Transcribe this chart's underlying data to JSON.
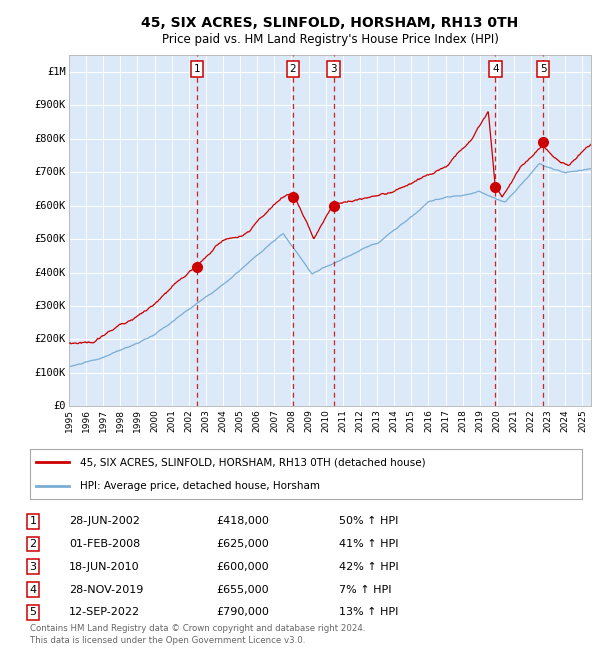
{
  "title": "45, SIX ACRES, SLINFOLD, HORSHAM, RH13 0TH",
  "subtitle": "Price paid vs. HM Land Registry's House Price Index (HPI)",
  "legend_red": "45, SIX ACRES, SLINFOLD, HORSHAM, RH13 0TH (detached house)",
  "legend_blue": "HPI: Average price, detached house, Horsham",
  "footer1": "Contains HM Land Registry data © Crown copyright and database right 2024.",
  "footer2": "This data is licensed under the Open Government Licence v3.0.",
  "sales": [
    {
      "num": 1,
      "date": "28-JUN-2002",
      "price": 418000,
      "pct": "50%",
      "dir": "↑",
      "x_year": 2002.49
    },
    {
      "num": 2,
      "date": "01-FEB-2008",
      "price": 625000,
      "pct": "41%",
      "dir": "↑",
      "x_year": 2008.08
    },
    {
      "num": 3,
      "date": "18-JUN-2010",
      "price": 600000,
      "pct": "42%",
      "dir": "↑",
      "x_year": 2010.46
    },
    {
      "num": 4,
      "date": "28-NOV-2019",
      "price": 655000,
      "pct": "7%",
      "dir": "↑",
      "x_year": 2019.91
    },
    {
      "num": 5,
      "date": "12-SEP-2022",
      "price": 790000,
      "pct": "13%",
      "dir": "↑",
      "x_year": 2022.7
    }
  ],
  "plot_bg": "#dce9f8",
  "red_color": "#cc0000",
  "blue_color": "#7aadd4",
  "grid_color": "#ffffff",
  "xlim": [
    1995.0,
    2025.5
  ],
  "ylim": [
    0,
    1050000
  ],
  "yticks": [
    0,
    100000,
    200000,
    300000,
    400000,
    500000,
    600000,
    700000,
    800000,
    900000,
    1000000
  ],
  "ytick_labels": [
    "£0",
    "£100K",
    "£200K",
    "£300K",
    "£400K",
    "£500K",
    "£600K",
    "£700K",
    "£800K",
    "£900K",
    "£1M"
  ]
}
